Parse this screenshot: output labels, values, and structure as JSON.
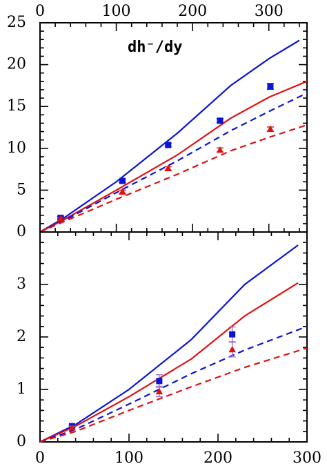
{
  "chart_data": [
    {
      "type": "line",
      "panel": "top",
      "title": "",
      "annotation": "dh⁻/dy",
      "xlabel": "",
      "ylabel": "",
      "xlim": [
        0,
        350
      ],
      "ylim": [
        0,
        25
      ],
      "x_ticks_top": [
        0,
        100,
        200,
        300
      ],
      "y_ticks": [
        0,
        5,
        10,
        15,
        20,
        25
      ],
      "grid": false,
      "colors": {
        "blue": "#0a14d2",
        "red": "#e01010"
      },
      "series": [
        {
          "color": "blue",
          "style": "solid",
          "x": [
            0,
            30,
            100,
            180,
            250,
            300,
            340
          ],
          "y": [
            0,
            1.6,
            6.0,
            11.8,
            17.5,
            20.7,
            22.9
          ]
        },
        {
          "color": "red",
          "style": "solid",
          "x": [
            0,
            30,
            100,
            180,
            250,
            300,
            350
          ],
          "y": [
            0,
            1.4,
            5.0,
            9.2,
            13.6,
            16.1,
            18.0
          ]
        },
        {
          "color": "blue",
          "style": "dashed",
          "x": [
            0,
            30,
            100,
            180,
            250,
            300,
            350
          ],
          "y": [
            0,
            1.3,
            4.7,
            8.5,
            12.1,
            14.4,
            16.6
          ]
        },
        {
          "color": "red",
          "style": "dashed",
          "x": [
            0,
            30,
            100,
            180,
            250,
            300,
            350
          ],
          "y": [
            0,
            1.2,
            3.9,
            6.9,
            9.7,
            11.3,
            12.8
          ]
        },
        {
          "color": "blue",
          "marker": "square",
          "x": [
            27,
            108,
            168,
            236,
            302
          ],
          "y": [
            1.7,
            6.1,
            10.4,
            13.3,
            17.4
          ],
          "yerr": [
            0.15,
            0.2,
            0.2,
            0.25,
            0.35
          ]
        },
        {
          "color": "red",
          "marker": "triangle",
          "x": [
            27,
            108,
            168,
            236,
            302
          ],
          "y": [
            1.6,
            4.8,
            7.6,
            9.8,
            12.3
          ],
          "yerr": [
            0.15,
            0.2,
            0.2,
            0.25,
            0.25
          ]
        }
      ]
    },
    {
      "type": "line",
      "panel": "bottom",
      "title": "",
      "xlabel": "",
      "ylabel": "",
      "xlim": [
        0,
        300
      ],
      "ylim": [
        0,
        4
      ],
      "x_ticks_bottom": [
        0,
        100,
        200,
        300
      ],
      "y_ticks": [
        0,
        1,
        2,
        3
      ],
      "grid": false,
      "colors": {
        "blue": "#0a14d2",
        "red": "#e01010"
      },
      "series": [
        {
          "color": "blue",
          "style": "solid",
          "x": [
            0,
            40,
            100,
            170,
            230,
            290
          ],
          "y": [
            0,
            0.33,
            1.0,
            1.95,
            3.0,
            3.75
          ]
        },
        {
          "color": "red",
          "style": "solid",
          "x": [
            0,
            40,
            100,
            170,
            230,
            290
          ],
          "y": [
            0,
            0.3,
            0.86,
            1.58,
            2.4,
            3.03
          ]
        },
        {
          "color": "blue",
          "style": "dashed",
          "x": [
            0,
            40,
            100,
            170,
            230,
            300
          ],
          "y": [
            0,
            0.24,
            0.72,
            1.3,
            1.75,
            2.2
          ]
        },
        {
          "color": "red",
          "style": "dashed",
          "x": [
            0,
            40,
            100,
            170,
            230,
            300
          ],
          "y": [
            0,
            0.2,
            0.6,
            1.05,
            1.42,
            1.79
          ]
        },
        {
          "color": "blue",
          "marker": "square",
          "x": [
            36,
            134,
            216
          ],
          "y": [
            0.3,
            1.16,
            2.05
          ],
          "yerr": [
            0.03,
            0.12,
            0.14
          ]
        },
        {
          "color": "red",
          "marker": "triangle",
          "x": [
            36,
            134,
            216
          ],
          "y": [
            0.27,
            0.96,
            1.76
          ],
          "yerr": [
            0.03,
            0.1,
            0.14
          ]
        }
      ]
    }
  ]
}
